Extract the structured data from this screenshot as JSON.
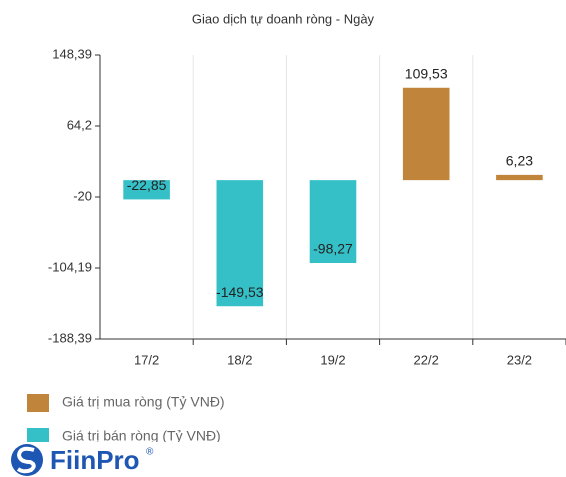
{
  "chart_data": {
    "type": "bar",
    "title": "Giao dịch tự doanh ròng - Ngày",
    "categories": [
      "17/2",
      "18/2",
      "19/2",
      "22/2",
      "23/2"
    ],
    "series": [
      {
        "name": "Giá trị mua ròng (Tỷ VNĐ)",
        "color": "#c0853a",
        "values": [
          null,
          null,
          null,
          109.53,
          6.23
        ],
        "value_labels": [
          null,
          null,
          null,
          "109,53",
          "6,23"
        ]
      },
      {
        "name": "Giá trị bán ròng (Tỷ VNĐ)",
        "color": "#35c0c8",
        "values": [
          -22.85,
          -149.53,
          -98.27,
          null,
          null
        ],
        "value_labels": [
          "-22,85",
          "-149,53",
          "-98,27",
          null,
          null
        ]
      }
    ],
    "ylim": [
      -188.39,
      148.39
    ],
    "yticks": [
      {
        "value": 148.39,
        "label": "148,39"
      },
      {
        "value": 64.2,
        "label": "64,2"
      },
      -20,
      {
        "value": -104.19,
        "label": "-104,19"
      },
      {
        "value": -188.39,
        "label": "-188,39"
      }
    ],
    "grid": true
  },
  "logo": {
    "text": "FiinPro",
    "mark": "®"
  }
}
